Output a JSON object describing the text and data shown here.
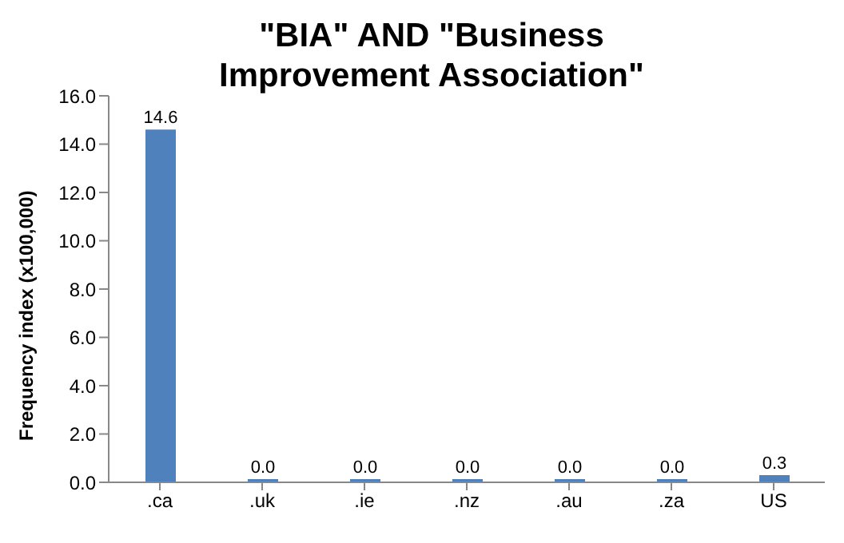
{
  "chart_data": {
    "type": "bar",
    "title": "\"BIA\" AND \"Business Improvement Association\"",
    "ylabel": "Frequency index (x100,000)",
    "categories": [
      ".ca",
      ".uk",
      ".ie",
      ".nz",
      ".au",
      ".za",
      "US"
    ],
    "values": [
      14.6,
      0.0,
      0.0,
      0.0,
      0.0,
      0.0,
      0.3
    ],
    "value_labels": [
      "14.6",
      "0.0",
      "0.0",
      "0.0",
      "0.0",
      "0.0",
      "0.3"
    ],
    "color": "#4f81bd",
    "ylim": [
      0,
      16
    ],
    "yticks": [
      {
        "value": 0,
        "label": "0.0"
      },
      {
        "value": 2,
        "label": "2.0"
      },
      {
        "value": 4,
        "label": "4.0"
      },
      {
        "value": 6,
        "label": "6.0"
      },
      {
        "value": 8,
        "label": "8.0"
      },
      {
        "value": 10,
        "label": "10.0"
      },
      {
        "value": 12,
        "label": "12.0"
      },
      {
        "value": 14,
        "label": "14.0"
      },
      {
        "value": 16,
        "label": "16.0"
      }
    ],
    "grid": false,
    "legend": false
  }
}
